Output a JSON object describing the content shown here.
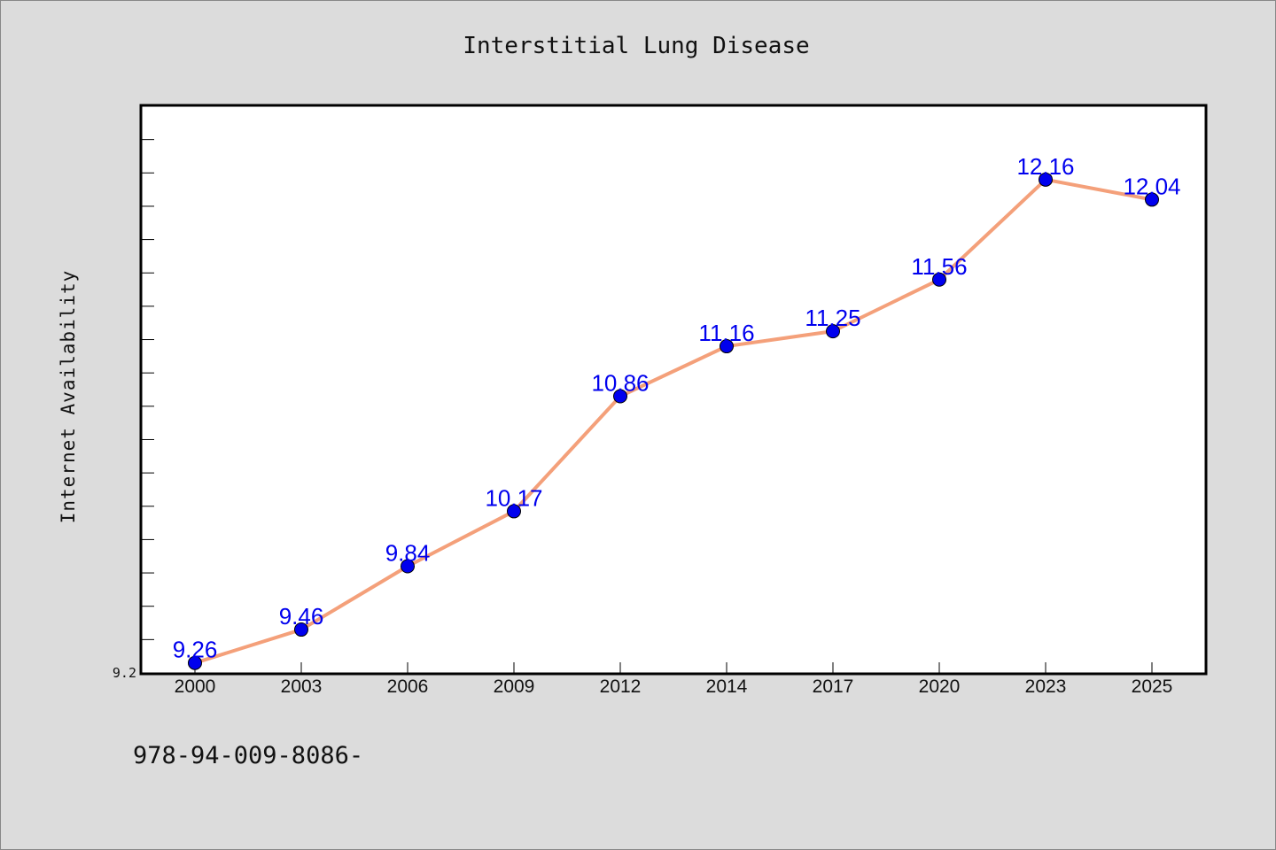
{
  "chart_data": {
    "type": "line",
    "title": "Interstitial Lung Disease",
    "xlabel": "",
    "ylabel": "Internet Availability",
    "categories": [
      "2000",
      "2003",
      "2006",
      "2009",
      "2012",
      "2014",
      "2017",
      "2020",
      "2023",
      "2025"
    ],
    "series": [
      {
        "values": [
          9.26,
          9.46,
          9.84,
          10.17,
          10.86,
          11.16,
          11.25,
          11.56,
          12.16,
          12.04
        ]
      }
    ],
    "data_labels": [
      "9.26",
      "9.46",
      "9.84",
      "10.17",
      "10.86",
      "11.16",
      "11.25",
      "11.56",
      "12.16",
      "12.04"
    ],
    "ylim": [
      9.2,
      12.6
    ],
    "y_tick_labels": [
      "9.2"
    ],
    "y_minor_tick_step": 0.2,
    "grid": false,
    "legend": "none",
    "colors": {
      "line": "#f4a07a",
      "marker": "#0000ee",
      "data_label": "#0000ee",
      "background": "#dcdcdc",
      "plot_background": "#ffffff"
    }
  },
  "footer_text": "978-94-009-8086-"
}
